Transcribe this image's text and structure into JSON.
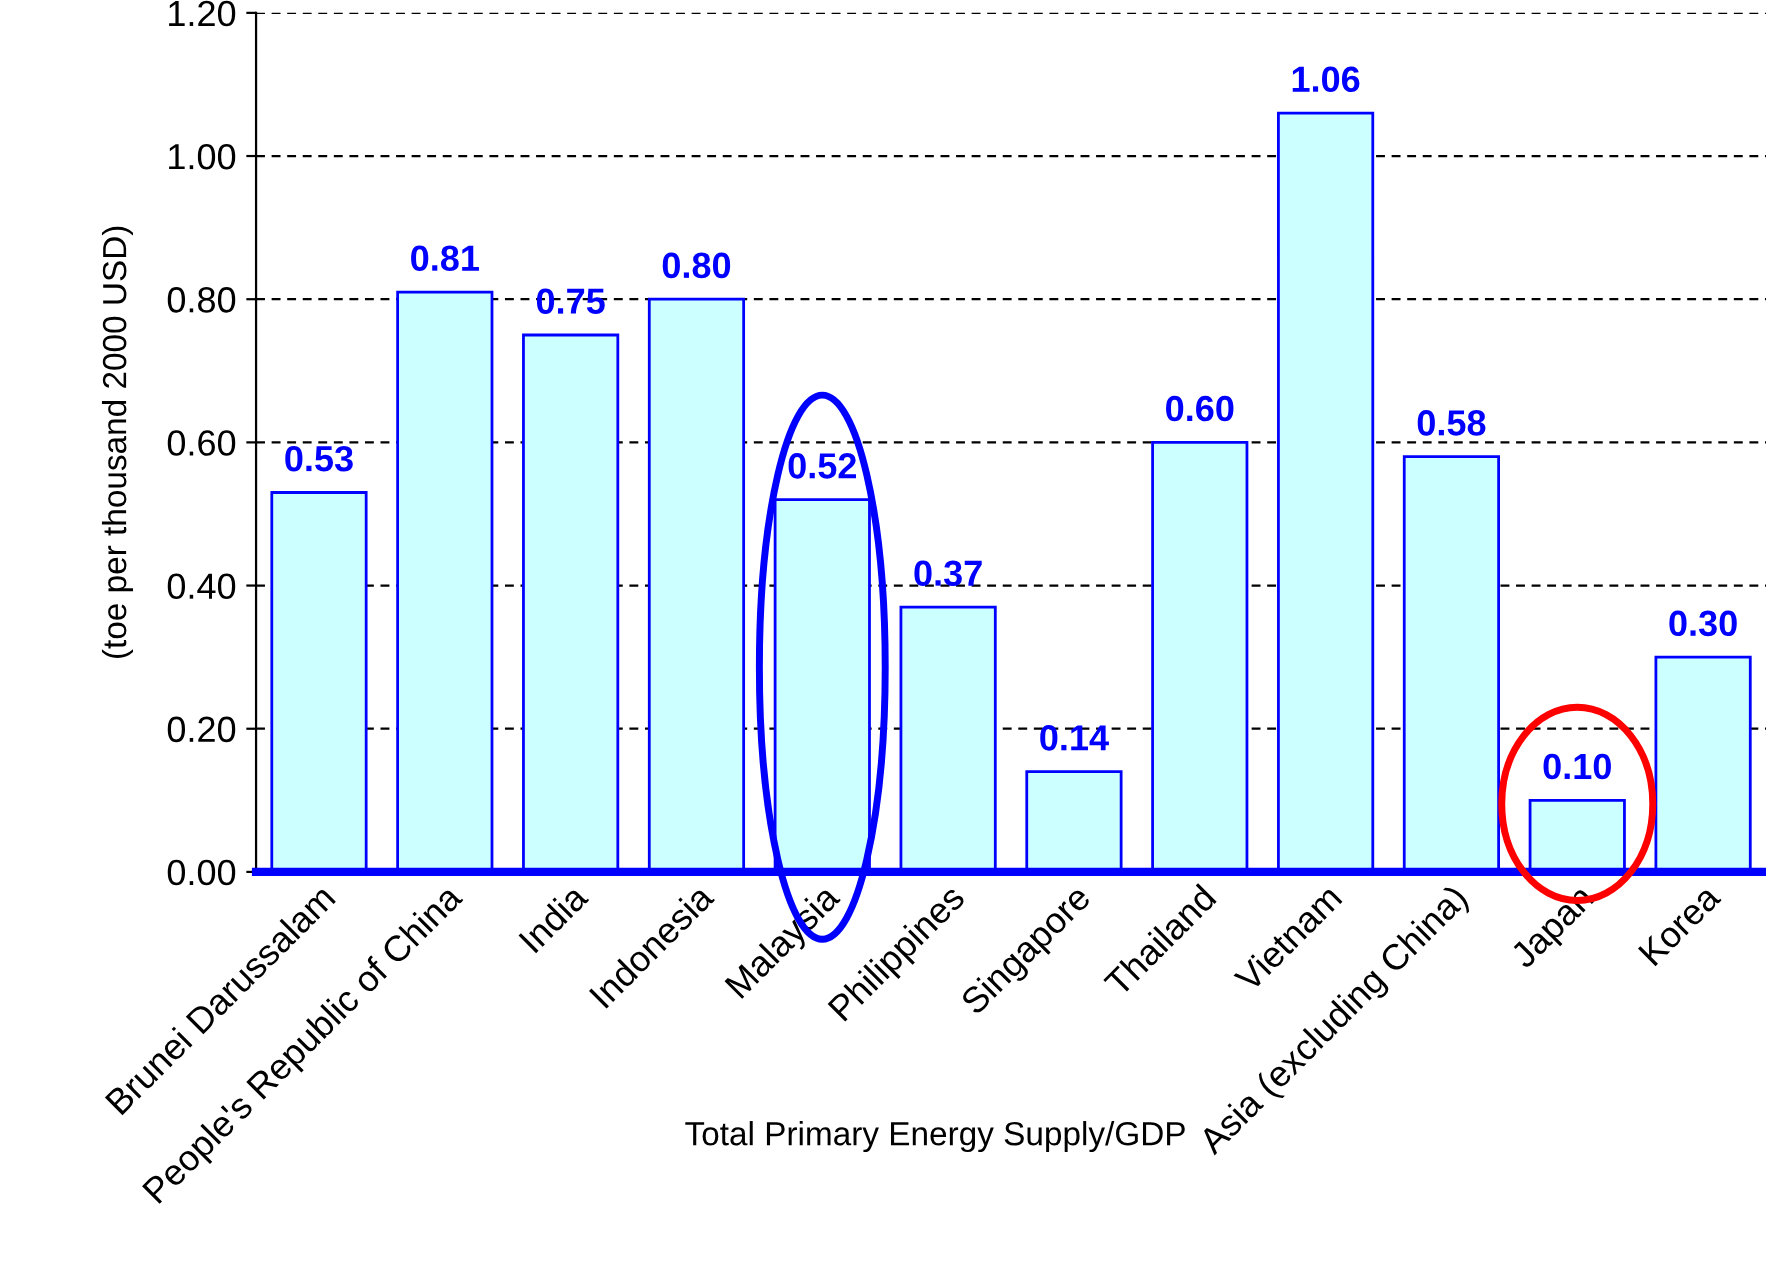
{
  "chart_data": {
    "type": "bar",
    "xlabel": "Total Primary Energy Supply/GDP",
    "ylabel": "(toe per thousand 2000 USD)",
    "categories": [
      "Brunei Darussalam",
      "People's Republic of China",
      "India",
      "Indonesia",
      "Malaysia",
      "Philippines",
      "Singapore",
      "Thailand",
      "Vietnam",
      "Asia (excluding China)",
      "Japan",
      "Korea"
    ],
    "values": [
      0.53,
      0.81,
      0.75,
      0.8,
      0.52,
      0.37,
      0.14,
      0.6,
      1.06,
      0.58,
      0.1,
      0.3
    ],
    "value_labels": [
      "0.53",
      "0.81",
      "0.75",
      "0.80",
      "0.52",
      "0.37",
      "0.14",
      "0.60",
      "1.06",
      "0.58",
      "0.10",
      "0.30"
    ],
    "color": "#ccffff",
    "ylim": [
      0,
      1.2
    ],
    "yticks": [
      {
        "value": 0,
        "label": "0.00"
      },
      {
        "value": 0.2,
        "label": "0.20"
      },
      {
        "value": 0.4,
        "label": "0.40"
      },
      {
        "value": 0.6,
        "label": "0.60"
      },
      {
        "value": 0.8,
        "label": "0.80"
      },
      {
        "value": 1.0,
        "label": "1.00"
      },
      {
        "value": 1.2,
        "label": "1.20"
      }
    ],
    "grid": "y"
  }
}
